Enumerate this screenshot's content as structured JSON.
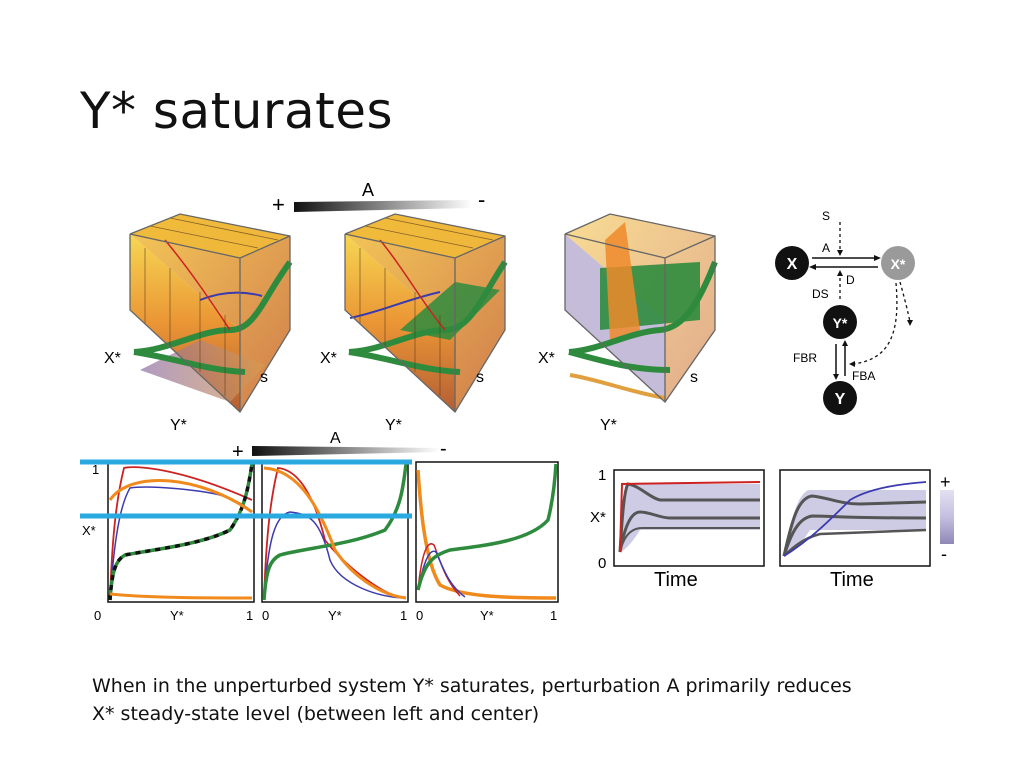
{
  "title": "Y* saturates",
  "caption": {
    "line1": "When in the unperturbed system Y* saturates, perturbation A primarily reduces",
    "line2": "X* steady-state level (between left and center)"
  },
  "top_panels": {
    "gradient_plus": "+",
    "gradient_label": "A",
    "gradient_minus": "-",
    "axis_x": "X*",
    "axis_y": "Y*",
    "axis_s": "s"
  },
  "network": {
    "node_x": "X",
    "node_xstar": "X*",
    "node_ystar": "Y*",
    "node_y": "Y",
    "label_s": "S",
    "label_a": "A",
    "label_d": "D",
    "label_ds": "DS",
    "label_fbr": "FBR",
    "label_fba": "FBA"
  },
  "bottom_panels": {
    "gradient_plus": "+",
    "gradient_label": "A",
    "gradient_minus": "-",
    "ytick_top": "1",
    "ylabel": "X*",
    "xtick_zero": "0",
    "xlabel": "Y*",
    "xtick_one": "1"
  },
  "time_panels": {
    "ytick_top": "1",
    "ylabel": "X*",
    "ytick_zero": "0",
    "xlabel": "Time",
    "scale_plus": "+",
    "scale_minus": "-"
  },
  "colors": {
    "orange": "#f08a1c",
    "green": "#2e8b3e",
    "red": "#cc2222",
    "blue": "#3b3bb0",
    "cyan": "#29a9e0",
    "band": "#c9c6e2"
  }
}
